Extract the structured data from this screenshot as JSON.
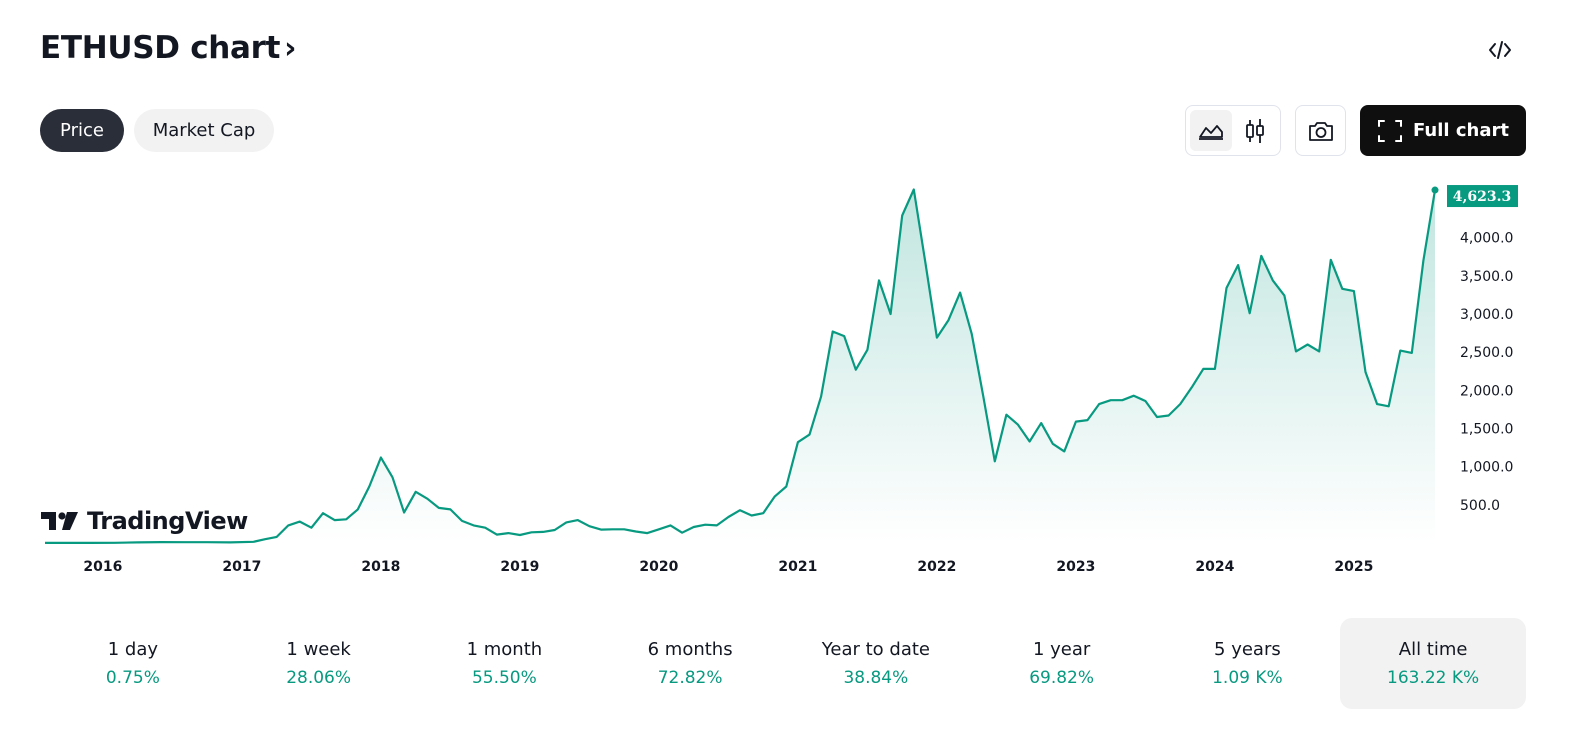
{
  "header": {
    "title": "ETHUSD chart",
    "chevron": "›",
    "embed_icon": "code-icon"
  },
  "tabs": [
    {
      "label": "Price",
      "active": true
    },
    {
      "label": "Market Cap",
      "active": false
    }
  ],
  "toolbar": {
    "line_type_icon": "area-chart-icon",
    "candle_type_icon": "candlestick-icon",
    "snapshot_icon": "camera-icon",
    "full_chart_label": "Full chart",
    "full_chart_icon": "fullscreen-icon"
  },
  "branding": {
    "logo_text": "TradingView"
  },
  "colors": {
    "line": "#089981",
    "accent_dark": "#0f0f0f",
    "price_tag": "#089981"
  },
  "chart_data": {
    "type": "area",
    "title": "",
    "xlabel": "",
    "ylabel": "",
    "x_ticks": [
      "2016",
      "2017",
      "2018",
      "2019",
      "2020",
      "2021",
      "2022",
      "2023",
      "2024",
      "2025"
    ],
    "y_ticks": [
      "500.0",
      "1,000.0",
      "1,500.0",
      "2,000.0",
      "2,500.0",
      "3,000.0",
      "3,500.0",
      "4,000.0"
    ],
    "ylim": [
      0,
      4650
    ],
    "last_value_label": "4,623.3",
    "series": [
      {
        "x": [
          "2015-08",
          "2015-10",
          "2015-12",
          "2016-02",
          "2016-04",
          "2016-06",
          "2016-08",
          "2016-10",
          "2016-12",
          "2017-02",
          "2017-03",
          "2017-04",
          "2017-05",
          "2017-06",
          "2017-07",
          "2017-08",
          "2017-09",
          "2017-10",
          "2017-11",
          "2017-12",
          "2018-01",
          "2018-02",
          "2018-03",
          "2018-04",
          "2018-05",
          "2018-06",
          "2018-07",
          "2018-08",
          "2018-09",
          "2018-10",
          "2018-11",
          "2018-12",
          "2019-01",
          "2019-02",
          "2019-03",
          "2019-04",
          "2019-05",
          "2019-06",
          "2019-07",
          "2019-08",
          "2019-09",
          "2019-10",
          "2019-11",
          "2019-12",
          "2020-01",
          "2020-02",
          "2020-03",
          "2020-04",
          "2020-05",
          "2020-06",
          "2020-07",
          "2020-08",
          "2020-09",
          "2020-10",
          "2020-11",
          "2020-12",
          "2021-01",
          "2021-02",
          "2021-03",
          "2021-04",
          "2021-05",
          "2021-06",
          "2021-07",
          "2021-08",
          "2021-09",
          "2021-10",
          "2021-11",
          "2021-12",
          "2022-01",
          "2022-02",
          "2022-03",
          "2022-04",
          "2022-05",
          "2022-06",
          "2022-07",
          "2022-08",
          "2022-09",
          "2022-10",
          "2022-11",
          "2022-12",
          "2023-01",
          "2023-02",
          "2023-03",
          "2023-04",
          "2023-05",
          "2023-06",
          "2023-07",
          "2023-08",
          "2023-09",
          "2023-10",
          "2023-11",
          "2023-12",
          "2024-01",
          "2024-02",
          "2024-03",
          "2024-04",
          "2024-05",
          "2024-06",
          "2024-07",
          "2024-08",
          "2024-09",
          "2024-10",
          "2024-11",
          "2024-12",
          "2025-01",
          "2025-02",
          "2025-03",
          "2025-04",
          "2025-05",
          "2025-06",
          "2025-07",
          "2025-08"
        ],
        "values": [
          1,
          1,
          1,
          3,
          8,
          12,
          10,
          11,
          8,
          16,
          50,
          80,
          230,
          280,
          200,
          390,
          300,
          310,
          440,
          740,
          1120,
          860,
          400,
          670,
          580,
          460,
          440,
          290,
          230,
          200,
          110,
          130,
          105,
          140,
          145,
          170,
          270,
          300,
          220,
          175,
          180,
          180,
          150,
          130,
          180,
          230,
          135,
          210,
          240,
          230,
          340,
          430,
          360,
          390,
          610,
          740,
          1320,
          1420,
          1920,
          2770,
          2710,
          2270,
          2530,
          3440,
          3000,
          4290,
          4630,
          3680,
          2690,
          2920,
          3280,
          2740,
          1920,
          1070,
          1680,
          1550,
          1330,
          1570,
          1300,
          1200,
          1590,
          1610,
          1820,
          1870,
          1870,
          1930,
          1860,
          1650,
          1670,
          1820,
          2040,
          2280,
          2280,
          3340,
          3640,
          3010,
          3760,
          3440,
          3240,
          2510,
          2600,
          2510,
          3710,
          3330,
          3300,
          2240,
          1820,
          1790,
          2520,
          2490,
          3700,
          4623.3
        ]
      }
    ]
  },
  "periods": [
    {
      "label": "1 day",
      "value": "0.75%"
    },
    {
      "label": "1 week",
      "value": "28.06%"
    },
    {
      "label": "1 month",
      "value": "55.50%"
    },
    {
      "label": "6 months",
      "value": "72.82%"
    },
    {
      "label": "Year to date",
      "value": "38.84%"
    },
    {
      "label": "1 year",
      "value": "69.82%"
    },
    {
      "label": "5 years",
      "value": "1.09 K%"
    },
    {
      "label": "All time",
      "value": "163.22 K%",
      "active": true
    }
  ]
}
